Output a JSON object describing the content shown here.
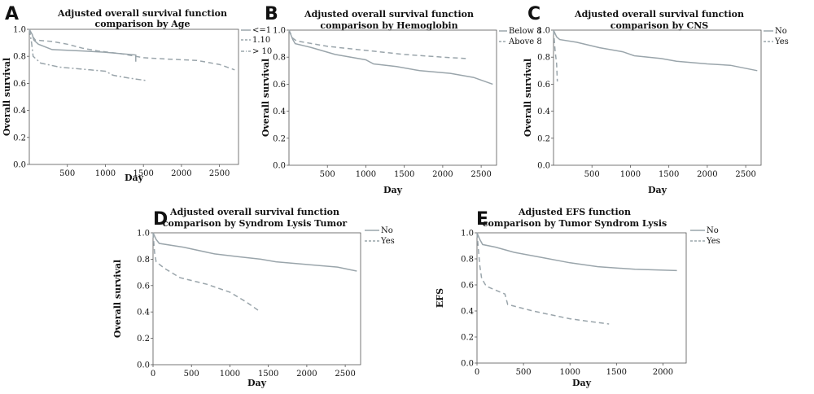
{
  "colors": {
    "line": "#9aa5ab",
    "axis": "#555555",
    "text": "#111111"
  },
  "chart_data": [
    {
      "panel": "A",
      "type": "line",
      "title": [
        "Adjusted overall survival function",
        "comparison by Age"
      ],
      "xlabel": "Day",
      "ylabel": "Overall survival",
      "xlim": [
        0,
        2750
      ],
      "ylim": [
        0,
        1.0
      ],
      "xticks": [
        "500",
        "1000",
        "1500",
        "2000",
        "2500"
      ],
      "yticks": [
        "0.0",
        "0.2",
        "0.4",
        "0.6",
        "0.8",
        "1.0"
      ],
      "legend_position": "right",
      "series": [
        {
          "name": "<=1",
          "style": "solid",
          "points": [
            [
              0,
              1.0
            ],
            [
              40,
              0.96
            ],
            [
              60,
              0.92
            ],
            [
              120,
              0.89
            ],
            [
              300,
              0.85
            ],
            [
              700,
              0.84
            ],
            [
              1000,
              0.83
            ],
            [
              1400,
              0.81
            ],
            [
              1400,
              0.76
            ]
          ]
        },
        {
          "name": "1.10",
          "style": "dashed",
          "points": [
            [
              0,
              1.0
            ],
            [
              40,
              0.95
            ],
            [
              80,
              0.92
            ],
            [
              300,
              0.91
            ],
            [
              500,
              0.89
            ],
            [
              700,
              0.86
            ],
            [
              900,
              0.84
            ],
            [
              1200,
              0.82
            ],
            [
              1500,
              0.79
            ],
            [
              1800,
              0.78
            ],
            [
              2200,
              0.77
            ],
            [
              2500,
              0.74
            ],
            [
              2700,
              0.7
            ]
          ]
        },
        {
          "name": "> 10",
          "style": "dashdot",
          "points": [
            [
              0,
              1.0
            ],
            [
              30,
              0.9
            ],
            [
              50,
              0.8
            ],
            [
              150,
              0.75
            ],
            [
              400,
              0.72
            ],
            [
              800,
              0.7
            ],
            [
              1000,
              0.69
            ],
            [
              1100,
              0.66
            ],
            [
              1300,
              0.64
            ],
            [
              1550,
              0.62
            ]
          ]
        }
      ]
    },
    {
      "panel": "B",
      "type": "line",
      "title": [
        "Adjusted overall survival function",
        "comparison by Hemoglobin"
      ],
      "xlabel": "Day",
      "ylabel": "Overall survival",
      "xlim": [
        0,
        2700
      ],
      "ylim": [
        0,
        1.0
      ],
      "xticks": [
        "500",
        "1000",
        "1500",
        "2000",
        "2500"
      ],
      "yticks": [
        "0.0",
        "0.2",
        "0.4",
        "0.6",
        "0.8",
        "1.0"
      ],
      "legend_position": "right",
      "series": [
        {
          "name": "Below 8",
          "style": "solid",
          "points": [
            [
              0,
              1.0
            ],
            [
              50,
              0.93
            ],
            [
              80,
              0.9
            ],
            [
              300,
              0.87
            ],
            [
              600,
              0.82
            ],
            [
              1000,
              0.78
            ],
            [
              1100,
              0.75
            ],
            [
              1400,
              0.73
            ],
            [
              1700,
              0.7
            ],
            [
              2100,
              0.68
            ],
            [
              2400,
              0.65
            ],
            [
              2650,
              0.6
            ]
          ]
        },
        {
          "name": "Above 8",
          "style": "dashed",
          "points": [
            [
              0,
              1.0
            ],
            [
              50,
              0.94
            ],
            [
              100,
              0.92
            ],
            [
              500,
              0.88
            ],
            [
              1000,
              0.85
            ],
            [
              1500,
              0.82
            ],
            [
              2000,
              0.8
            ],
            [
              2300,
              0.79
            ]
          ]
        }
      ]
    },
    {
      "panel": "C",
      "type": "line",
      "title": [
        "Adjusted overall survival function",
        "comparison by CNS"
      ],
      "xlabel": "Day",
      "ylabel": "Overall survival",
      "xlim": [
        0,
        2700
      ],
      "ylim": [
        0,
        1.0
      ],
      "xticks": [
        "500",
        "1000",
        "1500",
        "2000",
        "2500"
      ],
      "yticks": [
        "0.0",
        "0.2",
        "0.4",
        "0.6",
        "0.8",
        "1.0"
      ],
      "legend_position": "right",
      "series": [
        {
          "name": "No",
          "style": "solid",
          "points": [
            [
              0,
              1.0
            ],
            [
              40,
              0.95
            ],
            [
              80,
              0.93
            ],
            [
              300,
              0.91
            ],
            [
              600,
              0.87
            ],
            [
              900,
              0.84
            ],
            [
              1050,
              0.81
            ],
            [
              1400,
              0.79
            ],
            [
              1600,
              0.77
            ],
            [
              2000,
              0.75
            ],
            [
              2300,
              0.74
            ],
            [
              2650,
              0.7
            ]
          ]
        },
        {
          "name": "Yes",
          "style": "dashed",
          "points": [
            [
              0,
              1.0
            ],
            [
              20,
              0.85
            ],
            [
              40,
              0.75
            ],
            [
              50,
              0.62
            ]
          ]
        }
      ]
    },
    {
      "panel": "D",
      "type": "line",
      "title": [
        "Adjusted overall survival function",
        "comparison by Syndrom Lysis Tumor"
      ],
      "xlabel": "Day",
      "ylabel": "Overall survival",
      "xlim": [
        0,
        2700
      ],
      "ylim": [
        0,
        1.0
      ],
      "xticks": [
        "0",
        "500",
        "1000",
        "1500",
        "2000",
        "2500"
      ],
      "yticks": [
        "0.0",
        "0.2",
        "0.4",
        "0.6",
        "0.8",
        "1.0"
      ],
      "legend_position": "right",
      "series": [
        {
          "name": "No",
          "style": "solid",
          "points": [
            [
              0,
              1.0
            ],
            [
              40,
              0.95
            ],
            [
              80,
              0.92
            ],
            [
              400,
              0.89
            ],
            [
              800,
              0.84
            ],
            [
              1100,
              0.82
            ],
            [
              1400,
              0.8
            ],
            [
              1600,
              0.78
            ],
            [
              2000,
              0.76
            ],
            [
              2400,
              0.74
            ],
            [
              2650,
              0.71
            ]
          ]
        },
        {
          "name": "Yes",
          "style": "dashed",
          "points": [
            [
              0,
              1.0
            ],
            [
              20,
              0.85
            ],
            [
              40,
              0.78
            ],
            [
              150,
              0.73
            ],
            [
              350,
              0.66
            ],
            [
              700,
              0.61
            ],
            [
              1000,
              0.55
            ],
            [
              1200,
              0.48
            ],
            [
              1400,
              0.4
            ]
          ]
        }
      ]
    },
    {
      "panel": "E",
      "type": "line",
      "title": [
        "Adjusted EFS function",
        "comparison by Tumor Syndrom Lysis"
      ],
      "xlabel": "Day",
      "ylabel": "EFS",
      "xlim": [
        0,
        2250
      ],
      "ylim": [
        0,
        1.0
      ],
      "xticks": [
        "0",
        "500",
        "1000",
        "1500",
        "2000"
      ],
      "yticks": [
        "0.0",
        "0.2",
        "0.4",
        "0.6",
        "0.8",
        "1.0"
      ],
      "legend_position": "right",
      "series": [
        {
          "name": "No",
          "style": "solid",
          "points": [
            [
              0,
              1.0
            ],
            [
              30,
              0.95
            ],
            [
              60,
              0.91
            ],
            [
              200,
              0.89
            ],
            [
              400,
              0.85
            ],
            [
              700,
              0.81
            ],
            [
              1000,
              0.77
            ],
            [
              1300,
              0.74
            ],
            [
              1700,
              0.72
            ],
            [
              2150,
              0.71
            ]
          ]
        },
        {
          "name": "Yes",
          "style": "dashed",
          "points": [
            [
              0,
              1.0
            ],
            [
              30,
              0.75
            ],
            [
              50,
              0.65
            ],
            [
              100,
              0.59
            ],
            [
              300,
              0.53
            ],
            [
              330,
              0.45
            ],
            [
              600,
              0.4
            ],
            [
              1000,
              0.34
            ],
            [
              1200,
              0.32
            ],
            [
              1420,
              0.3
            ]
          ]
        }
      ]
    }
  ]
}
